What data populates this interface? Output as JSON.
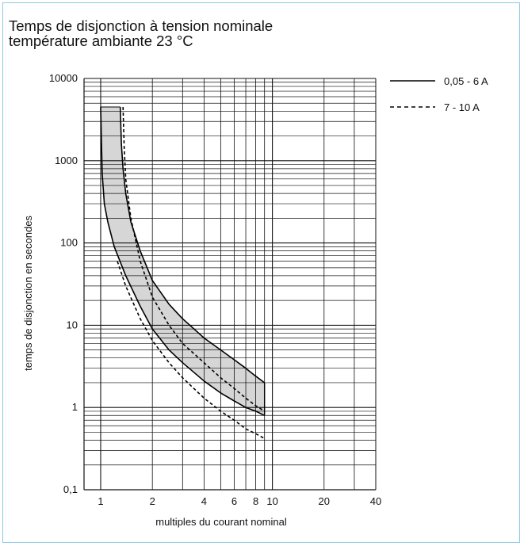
{
  "chart_data": {
    "type": "line",
    "title": "Temps de disjonction à tension nominale",
    "subtitle": "température ambiante 23 °C",
    "xlabel": "multiples du courant nominal",
    "ylabel": "temps de disjonction en secondes",
    "x_scale": "log",
    "y_scale": "log",
    "xlim": [
      0.8,
      40
    ],
    "ylim": [
      0.1,
      10000
    ],
    "x_ticks": [
      1,
      2,
      4,
      6,
      8,
      10,
      20,
      40
    ],
    "x_tick_labels": [
      "1",
      "2",
      "4",
      "6",
      "8",
      "10",
      "20",
      "40"
    ],
    "y_ticks": [
      0.1,
      1,
      10,
      100,
      1000,
      10000
    ],
    "y_tick_labels": [
      "0,1",
      "1",
      "10",
      "100",
      "1000",
      "10000"
    ],
    "grid": true,
    "legend_position": "top-right",
    "series": [
      {
        "name": "0,05 - 6 A",
        "style": "solid",
        "bands": [
          {
            "x": [
              1.0,
              1.02,
              1.05,
              1.1,
              1.2,
              1.4,
              1.7,
              2.0,
              2.5,
              3.0,
              4.0,
              5.0,
              6.0,
              7.0,
              8.0,
              9.0
            ],
            "y": [
              4500,
              700,
              300,
              180,
              90,
              40,
              17,
              9,
              5,
              3.5,
              2.1,
              1.5,
              1.2,
              1.0,
              0.9,
              0.8
            ]
          },
          {
            "x": [
              1.3,
              1.32,
              1.35,
              1.4,
              1.5,
              1.7,
              2.0,
              2.5,
              3.0,
              4.0,
              5.0,
              6.0,
              7.0,
              8.0,
              9.0
            ],
            "y": [
              4500,
              1600,
              800,
              400,
              180,
              80,
              35,
              18,
              12,
              7,
              5,
              3.8,
              3.0,
              2.4,
              2.0
            ]
          }
        ]
      },
      {
        "name": "7 - 10 A",
        "style": "dashed",
        "bands": [
          {
            "x": [
              1.25,
              1.4,
              1.7,
              2.0,
              2.5,
              3.0,
              4.0,
              5.0,
              6.0,
              7.0,
              8.0,
              9.0
            ],
            "y": [
              60,
              30,
              12,
              6.5,
              3.5,
              2.3,
              1.3,
              0.9,
              0.7,
              0.55,
              0.48,
              0.42
            ]
          },
          {
            "x": [
              1.35,
              1.37,
              1.4,
              1.5,
              1.7,
              2.0,
              2.5,
              3.0,
              4.0,
              5.0,
              6.0,
              7.0,
              8.0,
              9.0
            ],
            "y": [
              4500,
              1500,
              600,
              200,
              60,
              22,
              10,
              6,
              3.5,
              2.3,
              1.7,
              1.3,
              1.05,
              0.9
            ]
          }
        ]
      }
    ],
    "colors": {
      "line": "#000000",
      "band_fill": "#d6d6d6",
      "grid": "#111111",
      "frame": "#8ec8e8"
    }
  }
}
